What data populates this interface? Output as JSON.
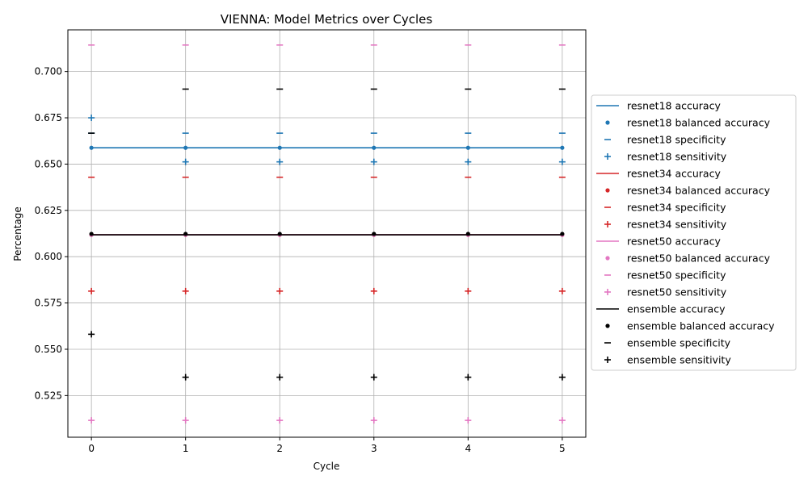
{
  "chart_data": {
    "type": "line",
    "title": "VIENNA: Model Metrics over Cycles",
    "xlabel": "Cycle",
    "ylabel": "Percentage",
    "x": [
      0,
      1,
      2,
      3,
      4,
      5
    ],
    "xlim": [
      -0.25,
      5.25
    ],
    "ylim": [
      0.5025,
      0.7225
    ],
    "xticks": [
      0,
      1,
      2,
      3,
      4,
      5
    ],
    "yticks": [
      0.525,
      0.55,
      0.575,
      0.6,
      0.625,
      0.65,
      0.675,
      0.7
    ],
    "ytick_labels": [
      "0.525",
      "0.550",
      "0.575",
      "0.600",
      "0.625",
      "0.650",
      "0.675",
      "0.700"
    ],
    "grid": true,
    "legend_position": "right outside",
    "models": [
      {
        "name": "resnet18",
        "color": "#1f77b4",
        "accuracy": [
          0.6588,
          0.6588,
          0.6588,
          0.6588,
          0.6588,
          0.6588
        ],
        "balanced_accuracy": [
          0.6588,
          0.6588,
          0.6588,
          0.6588,
          0.6588,
          0.6588
        ],
        "specificity": [
          0.6667,
          0.6667,
          0.6667,
          0.6667,
          0.6667,
          0.6667
        ],
        "sensitivity": [
          0.675,
          0.6512,
          0.6512,
          0.6512,
          0.6512,
          0.6512
        ]
      },
      {
        "name": "resnet34",
        "color": "#d62728",
        "accuracy": [
          0.6118,
          0.6118,
          0.6118,
          0.6118,
          0.6118,
          0.6118
        ],
        "balanced_accuracy": [
          0.6118,
          0.6118,
          0.6118,
          0.6118,
          0.6118,
          0.6118
        ],
        "specificity": [
          0.6429,
          0.6429,
          0.6429,
          0.6429,
          0.6429,
          0.6429
        ],
        "sensitivity": [
          0.5814,
          0.5814,
          0.5814,
          0.5814,
          0.5814,
          0.5814
        ]
      },
      {
        "name": "resnet50",
        "color": "#e377c2",
        "accuracy": [
          0.6118,
          0.6118,
          0.6118,
          0.6118,
          0.6118,
          0.6118
        ],
        "balanced_accuracy": [
          0.6118,
          0.6118,
          0.6118,
          0.6118,
          0.6118,
          0.6118
        ],
        "specificity": [
          0.7143,
          0.7143,
          0.7143,
          0.7143,
          0.7143,
          0.7143
        ],
        "sensitivity": [
          0.5116,
          0.5116,
          0.5116,
          0.5116,
          0.5116,
          0.5116
        ]
      },
      {
        "name": "ensemble",
        "color": "#000000",
        "accuracy": [
          0.6118,
          0.6118,
          0.6118,
          0.6118,
          0.6118,
          0.6118
        ],
        "balanced_accuracy": [
          0.6123,
          0.6123,
          0.6123,
          0.6123,
          0.6123,
          0.6123
        ],
        "specificity": [
          0.6667,
          0.6905,
          0.6905,
          0.6905,
          0.6905,
          0.6905
        ],
        "sensitivity": [
          0.5581,
          0.5349,
          0.5349,
          0.5349,
          0.5349,
          0.5349
        ]
      }
    ],
    "legend": [
      {
        "label": "resnet18 accuracy",
        "marker": "line",
        "color": "#1f77b4"
      },
      {
        "label": "resnet18 balanced accuracy",
        "marker": "dot",
        "color": "#1f77b4"
      },
      {
        "label": "resnet18 specificity",
        "marker": "dash",
        "color": "#1f77b4"
      },
      {
        "label": "resnet18 sensitivity",
        "marker": "plus",
        "color": "#1f77b4"
      },
      {
        "label": "resnet34 accuracy",
        "marker": "line",
        "color": "#d62728"
      },
      {
        "label": "resnet34 balanced accuracy",
        "marker": "dot",
        "color": "#d62728"
      },
      {
        "label": "resnet34 specificity",
        "marker": "dash",
        "color": "#d62728"
      },
      {
        "label": "resnet34 sensitivity",
        "marker": "plus",
        "color": "#d62728"
      },
      {
        "label": "resnet50 accuracy",
        "marker": "line",
        "color": "#e377c2"
      },
      {
        "label": "resnet50 balanced accuracy",
        "marker": "dot",
        "color": "#e377c2"
      },
      {
        "label": "resnet50 specificity",
        "marker": "dash",
        "color": "#e377c2"
      },
      {
        "label": "resnet50 sensitivity",
        "marker": "plus",
        "color": "#e377c2"
      },
      {
        "label": "ensemble accuracy",
        "marker": "line",
        "color": "#000000"
      },
      {
        "label": "ensemble balanced accuracy",
        "marker": "dot",
        "color": "#000000"
      },
      {
        "label": "ensemble specificity",
        "marker": "dash",
        "color": "#000000"
      },
      {
        "label": "ensemble sensitivity",
        "marker": "plus",
        "color": "#000000"
      }
    ]
  }
}
